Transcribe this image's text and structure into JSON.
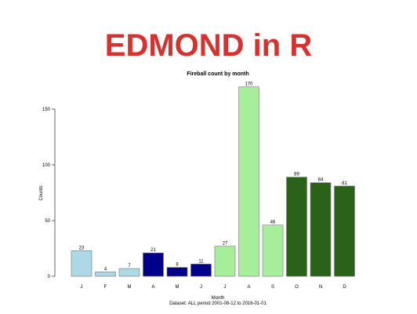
{
  "slide": {
    "title": "EDMOND in R",
    "title_color": "#d6322f"
  },
  "chart_data": {
    "type": "bar",
    "title": "Fireball count by month",
    "xlabel": "Month",
    "ylabel": "Counts",
    "subtitle": "Dataset: ALL period 2001-08-12 to 2016-01-01",
    "categories": [
      "J",
      "F",
      "M",
      "A",
      "M",
      "J",
      "J",
      "A",
      "S",
      "O",
      "N",
      "D"
    ],
    "values": [
      23,
      4,
      7,
      21,
      8,
      11,
      27,
      170,
      46,
      89,
      84,
      81
    ],
    "colors": [
      "#add8e6",
      "#add8e6",
      "#add8e6",
      "#00008b",
      "#00008b",
      "#00008b",
      "#a6ee9a",
      "#a6ee9a",
      "#a6ee9a",
      "#2b6219",
      "#2b6219",
      "#2b6219"
    ],
    "yticks": [
      0,
      50,
      100,
      150
    ],
    "ylim": [
      0,
      175
    ],
    "grid": false,
    "legend": "none"
  }
}
